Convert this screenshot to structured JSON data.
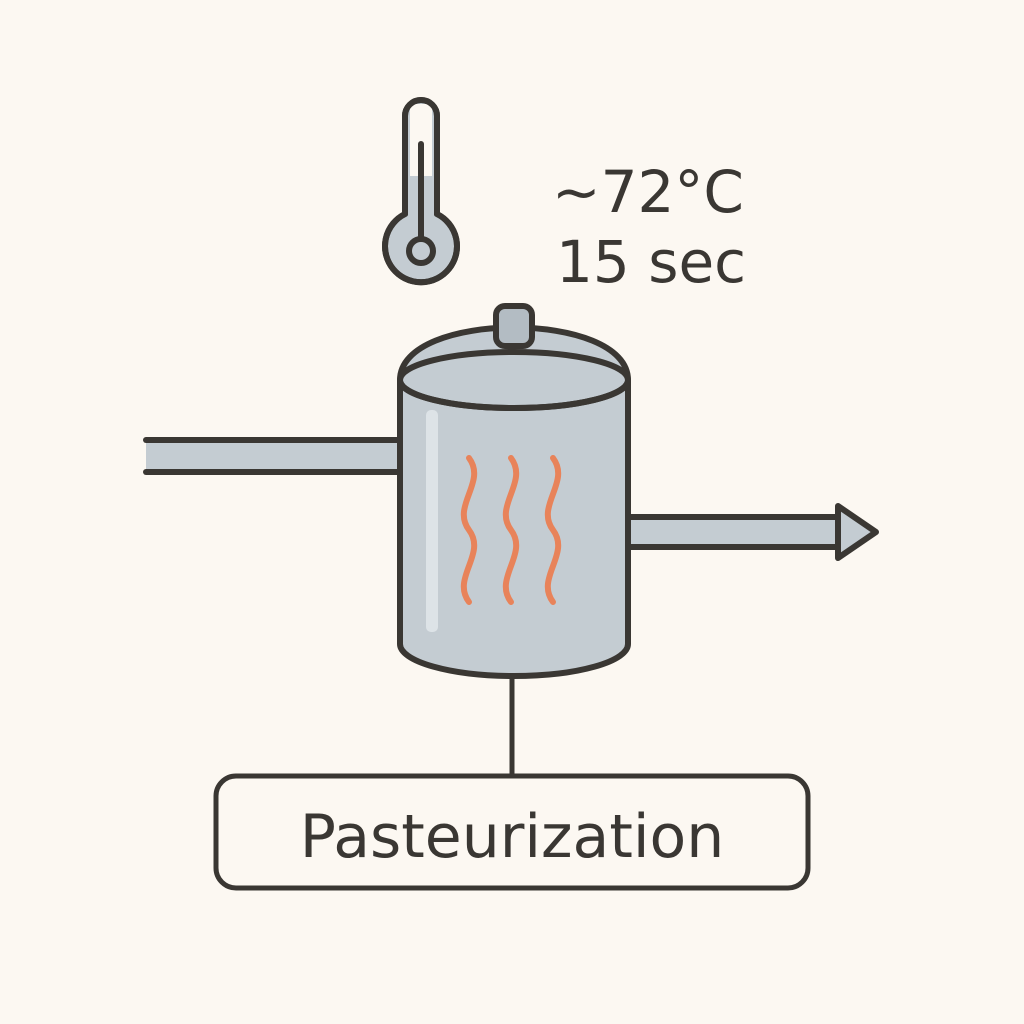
{
  "diagram": {
    "temperature": "~72°C",
    "duration": "15 sec",
    "caption": "Pasteurization"
  },
  "icons": {
    "thermometer": "thermometer-icon",
    "heat": "heat-waves-icon",
    "tank": "tank-icon",
    "arrow": "arrow-right-icon"
  },
  "colors": {
    "background": "#fcf8f2",
    "outline": "#3a3733",
    "steel": "#c4ccd2",
    "steel_light": "#dde3e7",
    "heat": "#e8835a"
  }
}
